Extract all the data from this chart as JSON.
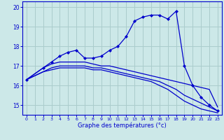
{
  "xlabel": "Graphe des températures (°c)",
  "bg_color": "#cce8e8",
  "grid_color": "#aacccc",
  "line_color": "#0000cc",
  "ylim": [
    14.5,
    20.3
  ],
  "xlim": [
    -0.5,
    23.5
  ],
  "yticks": [
    15,
    16,
    17,
    18,
    19,
    20
  ],
  "xticks": [
    0,
    1,
    2,
    3,
    4,
    5,
    6,
    7,
    8,
    9,
    10,
    11,
    12,
    13,
    14,
    15,
    16,
    17,
    18,
    19,
    20,
    21,
    22,
    23
  ],
  "series": [
    {
      "x": [
        0,
        1,
        2,
        3,
        4,
        5,
        6,
        7,
        8,
        9,
        10,
        11,
        12,
        13,
        14,
        15,
        16,
        17,
        18,
        19,
        20,
        21,
        22,
        23
      ],
      "y": [
        16.3,
        16.6,
        16.9,
        17.1,
        17.2,
        17.2,
        17.2,
        17.2,
        17.1,
        17.0,
        17.0,
        16.9,
        16.8,
        16.7,
        16.6,
        16.5,
        16.4,
        16.3,
        16.2,
        16.1,
        16.0,
        15.9,
        15.8,
        14.9
      ],
      "marker": null,
      "lw": 0.9
    },
    {
      "x": [
        0,
        1,
        2,
        3,
        4,
        5,
        6,
        7,
        8,
        9,
        10,
        11,
        12,
        13,
        14,
        15,
        16,
        17,
        18,
        19,
        20,
        21,
        22,
        23
      ],
      "y": [
        16.3,
        16.5,
        16.7,
        16.9,
        17.0,
        17.0,
        17.0,
        17.0,
        16.9,
        16.9,
        16.8,
        16.7,
        16.6,
        16.5,
        16.4,
        16.3,
        16.2,
        16.0,
        15.8,
        15.5,
        15.3,
        15.1,
        14.9,
        14.7
      ],
      "marker": null,
      "lw": 0.9
    },
    {
      "x": [
        0,
        1,
        2,
        3,
        4,
        5,
        6,
        7,
        8,
        9,
        10,
        11,
        12,
        13,
        14,
        15,
        16,
        17,
        18,
        19,
        20,
        21,
        22,
        23
      ],
      "y": [
        16.3,
        16.5,
        16.7,
        16.8,
        16.9,
        16.9,
        16.9,
        16.9,
        16.8,
        16.8,
        16.7,
        16.6,
        16.5,
        16.4,
        16.3,
        16.2,
        16.0,
        15.8,
        15.5,
        15.2,
        15.0,
        14.8,
        14.7,
        14.6
      ],
      "marker": null,
      "lw": 0.9
    },
    {
      "x": [
        0,
        2,
        3,
        4,
        5,
        6,
        7,
        8,
        9,
        10,
        11,
        12,
        13,
        14,
        15,
        16,
        17,
        18,
        19,
        20,
        21,
        22,
        23
      ],
      "y": [
        16.3,
        16.9,
        17.2,
        17.5,
        17.7,
        17.8,
        17.4,
        17.4,
        17.5,
        17.8,
        18.0,
        18.5,
        19.3,
        19.5,
        19.6,
        19.6,
        19.4,
        19.8,
        17.0,
        16.0,
        15.4,
        15.0,
        14.7
      ],
      "marker": "D",
      "lw": 0.9
    }
  ]
}
